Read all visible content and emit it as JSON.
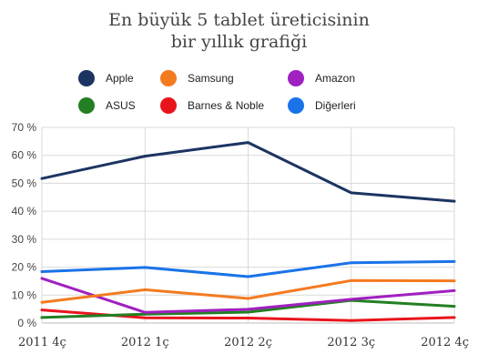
{
  "chart_data": {
    "type": "line",
    "title": [
      "En büyük 5 tablet üreticisinin",
      "bir yıllık grafiği"
    ],
    "categories": [
      "2011 4ç",
      "2012 1ç",
      "2012 2ç",
      "2012 3ç",
      "2012 4ç"
    ],
    "y_ticks": [
      "0 %",
      "10 %",
      "20 %",
      "30 %",
      "40 %",
      "50 %",
      "60 %",
      "70 %"
    ],
    "ylim": [
      0,
      70
    ],
    "grid": true,
    "legend_position": "top",
    "series": [
      {
        "name": "Apple",
        "color": "#1c3461",
        "values": [
          51.7,
          59.7,
          64.6,
          46.6,
          43.6
        ]
      },
      {
        "name": "Samsung",
        "color": "#f47a20",
        "values": [
          7.4,
          11.9,
          8.8,
          15.2,
          15.1
        ]
      },
      {
        "name": "Amazon",
        "color": "#a020c0",
        "values": [
          16.0,
          3.8,
          4.9,
          8.5,
          11.6
        ]
      },
      {
        "name": "ASUS",
        "color": "#237f23",
        "values": [
          2.0,
          3.2,
          3.9,
          8.1,
          6.0
        ]
      },
      {
        "name": "Barnes & Noble",
        "color": "#e8141c",
        "values": [
          4.7,
          1.9,
          1.8,
          0.9,
          2.0
        ]
      },
      {
        "name": "Diğerleri",
        "color": "#1a73e8",
        "values": [
          18.4,
          19.9,
          16.6,
          21.6,
          22.0
        ]
      }
    ]
  }
}
